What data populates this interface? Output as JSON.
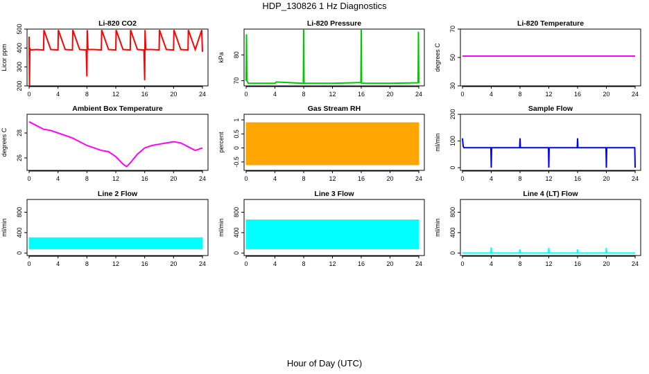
{
  "page": {
    "title": "HDP_130826  1 Hz Diagnostics",
    "xlabel": "Hour of Day (UTC)"
  },
  "chart_data": [
    {
      "type": "line",
      "title": "Li-820 CO2",
      "ylabel": "Licor ppm",
      "color": "#ff0000",
      "xlim": [
        0,
        24
      ],
      "ylim": [
        200,
        500
      ],
      "xticks": [
        0,
        4,
        8,
        12,
        16,
        20,
        24
      ],
      "yticks": [
        200,
        300,
        400,
        500
      ],
      "series": [
        {
          "x": [
            0,
            0.05,
            0.1,
            0.2,
            1,
            2,
            2.05,
            3,
            4,
            4.05,
            5,
            6,
            6.05,
            7,
            7.9,
            8,
            8.05,
            8.15,
            9,
            10,
            10.05,
            11,
            12,
            12.05,
            13,
            14,
            14.05,
            15,
            15.9,
            16,
            16.05,
            16.15,
            17,
            18,
            18.05,
            19,
            20,
            20.05,
            21,
            22,
            22.05,
            23,
            23.9,
            24
          ],
          "y": [
            460,
            200,
            400,
            390,
            392,
            390,
            495,
            392,
            390,
            495,
            392,
            390,
            495,
            392,
            390,
            250,
            495,
            392,
            392,
            390,
            495,
            392,
            390,
            495,
            392,
            390,
            495,
            392,
            390,
            230,
            495,
            392,
            392,
            390,
            495,
            392,
            390,
            495,
            392,
            390,
            495,
            392,
            495,
            380
          ]
        }
      ]
    },
    {
      "type": "line",
      "title": "Li-820 Pressure",
      "ylabel": "kPa",
      "color": "#00c800",
      "xlim": [
        0,
        24
      ],
      "ylim": [
        68,
        90
      ],
      "xticks": [
        0,
        4,
        8,
        12,
        16,
        20,
        24
      ],
      "yticks": [
        70,
        80
      ],
      "series": [
        {
          "x": [
            0,
            0.05,
            0.1,
            0.3,
            4,
            4.2,
            7.95,
            8,
            8.05,
            12,
            15.95,
            16,
            16.05,
            20,
            23.9,
            23.95,
            24
          ],
          "y": [
            70,
            88,
            70,
            69,
            69,
            69.5,
            69,
            90,
            69,
            69,
            69.3,
            90,
            69,
            69,
            69.2,
            89,
            69
          ]
        }
      ]
    },
    {
      "type": "line",
      "title": "Li-820 Temperature",
      "ylabel": "degrees C",
      "color": "#ff00ff",
      "xlim": [
        0,
        24
      ],
      "ylim": [
        30,
        70
      ],
      "xticks": [
        0,
        4,
        8,
        12,
        16,
        20,
        24
      ],
      "yticks": [
        30,
        50,
        70
      ],
      "series": [
        {
          "x": [
            0,
            24
          ],
          "y": [
            51,
            51
          ]
        }
      ]
    },
    {
      "type": "line",
      "title": "Ambient Box Temperature",
      "ylabel": "degrees C",
      "color": "#ff00ff",
      "xlim": [
        0,
        24
      ],
      "ylim": [
        25,
        29.5
      ],
      "xticks": [
        0,
        4,
        8,
        12,
        16,
        20,
        24
      ],
      "yticks": [
        26,
        28
      ],
      "series": [
        {
          "x": [
            0,
            1,
            2,
            3,
            4,
            5,
            6,
            7,
            8,
            9,
            10,
            11,
            12,
            13,
            13.5,
            14,
            15,
            16,
            17,
            18,
            19,
            20,
            21,
            22,
            23,
            24
          ],
          "y": [
            28.9,
            28.6,
            28.3,
            28.2,
            28.0,
            27.8,
            27.6,
            27.3,
            27.0,
            26.8,
            26.6,
            26.5,
            26.1,
            25.5,
            25.3,
            25.6,
            26.3,
            26.8,
            27.0,
            27.1,
            27.2,
            27.3,
            27.2,
            26.9,
            26.6,
            26.8
          ]
        }
      ]
    },
    {
      "type": "area",
      "title": "Gas Stream RH",
      "ylabel": "percent",
      "color": "#ffa500",
      "xlim": [
        0,
        24
      ],
      "ylim": [
        -0.8,
        1.2
      ],
      "xticks": [
        0,
        4,
        8,
        12,
        16,
        20,
        24
      ],
      "yticks": [
        -0.5,
        0,
        0.5,
        1
      ],
      "series": [
        {
          "x": [
            0,
            24
          ],
          "y_low": [
            -0.6,
            -0.6
          ],
          "y_high": [
            0.9,
            0.9
          ]
        }
      ]
    },
    {
      "type": "line",
      "title": "Sample Flow",
      "ylabel": "ml/min",
      "color": "#0000ff",
      "xlim": [
        0,
        24
      ],
      "ylim": [
        -10,
        200
      ],
      "xticks": [
        0,
        4,
        8,
        12,
        16,
        20,
        24
      ],
      "yticks": [
        0,
        100,
        200
      ],
      "series": [
        {
          "x": [
            0,
            0.1,
            0.2,
            3.95,
            4,
            4.05,
            7.95,
            8,
            8.05,
            11.95,
            12,
            12.05,
            15.95,
            16,
            16.05,
            19.95,
            20,
            20.05,
            23.95,
            24
          ],
          "y": [
            110,
            80,
            75,
            75,
            0,
            75,
            75,
            110,
            75,
            75,
            0,
            75,
            75,
            110,
            75,
            75,
            0,
            75,
            75,
            0
          ]
        }
      ]
    },
    {
      "type": "area",
      "title": "Line 2 Flow",
      "ylabel": "ml/min",
      "color": "#00ffff",
      "xlim": [
        0,
        24
      ],
      "ylim": [
        -50,
        1050
      ],
      "xticks": [
        0,
        4,
        8,
        12,
        16,
        20,
        24
      ],
      "yticks": [
        0,
        400,
        800
      ],
      "series": [
        {
          "x": [
            0,
            24
          ],
          "y_low": [
            80,
            80
          ],
          "y_high": [
            300,
            300
          ]
        }
      ]
    },
    {
      "type": "area",
      "title": "Line 3 Flow",
      "ylabel": "ml/min",
      "color": "#00ffff",
      "xlim": [
        0,
        24
      ],
      "ylim": [
        -50,
        1050
      ],
      "xticks": [
        0,
        4,
        8,
        12,
        16,
        20,
        24
      ],
      "yticks": [
        0,
        400,
        800
      ],
      "series": [
        {
          "x": [
            0,
            24
          ],
          "y_low": [
            80,
            80
          ],
          "y_high": [
            650,
            650
          ]
        }
      ]
    },
    {
      "type": "line",
      "title": "Line 4 (LT) Flow",
      "ylabel": "ml/min",
      "color": "#00ffff",
      "xlim": [
        0,
        24
      ],
      "ylim": [
        -50,
        1050
      ],
      "xticks": [
        0,
        4,
        8,
        12,
        16,
        20,
        24
      ],
      "yticks": [
        0,
        400,
        800
      ],
      "series": [
        {
          "x": [
            0,
            3.95,
            4,
            4.05,
            7.95,
            8,
            8.05,
            11.95,
            12,
            12.05,
            15.95,
            16,
            16.05,
            19.95,
            20,
            20.05,
            24
          ],
          "y": [
            0,
            0,
            110,
            0,
            0,
            70,
            0,
            0,
            100,
            0,
            0,
            70,
            0,
            0,
            100,
            0,
            0
          ]
        }
      ]
    }
  ]
}
